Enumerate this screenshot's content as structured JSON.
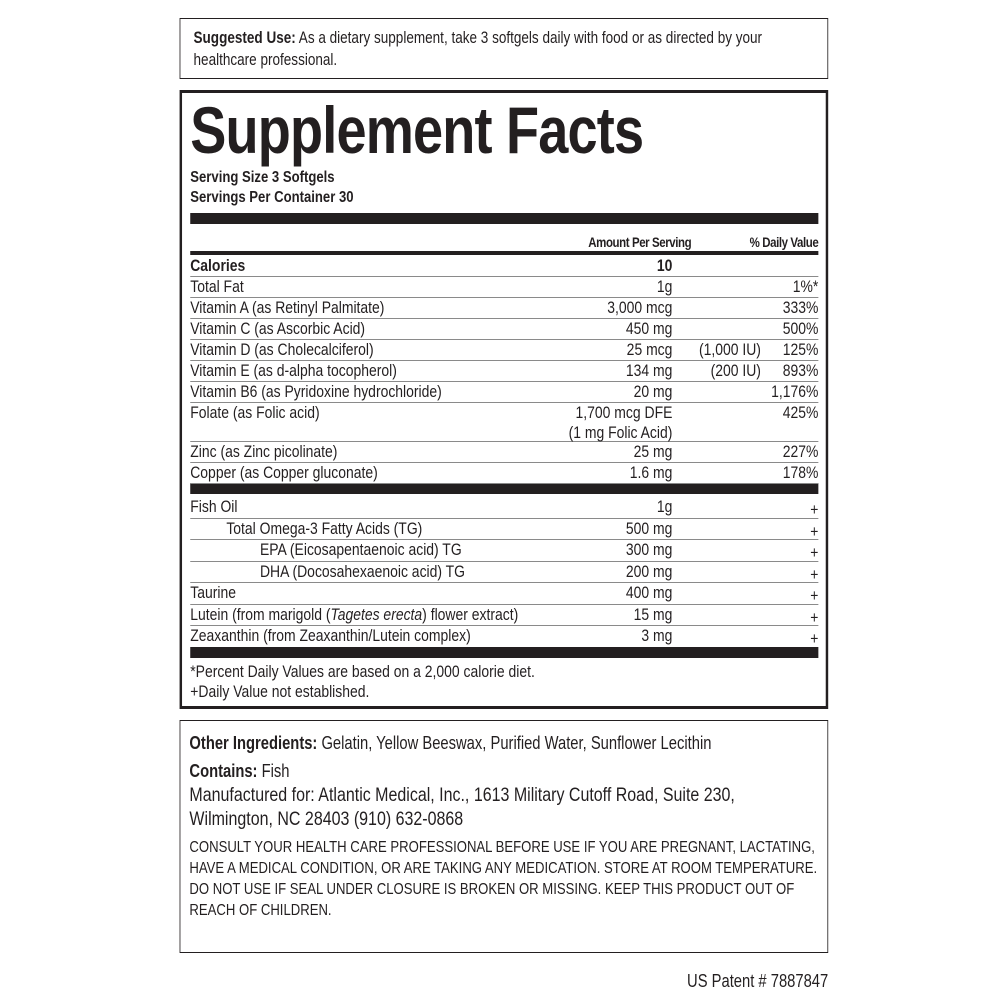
{
  "suggested_use": {
    "label": "Suggested Use:",
    "text": " As a dietary supplement, take 3 softgels daily with food or as directed by your healthcare professional."
  },
  "facts": {
    "title": "Supplement Facts",
    "serving_size": "Serving Size 3 Softgels",
    "servings_per_container": "Servings Per Container 30",
    "col_amount": "Amount Per Serving",
    "col_dv": "% Daily Value",
    "calories": {
      "name": "Calories",
      "amount": "10"
    },
    "rows": [
      {
        "name": "Total Fat",
        "amount": "1g",
        "iu": "",
        "dv": "1%*"
      },
      {
        "name": "Vitamin A (as Retinyl Palmitate)",
        "amount": "3,000 mcg",
        "iu": "",
        "dv": "333%"
      },
      {
        "name": "Vitamin C (as Ascorbic Acid)",
        "amount": "450 mg",
        "iu": "",
        "dv": "500%"
      },
      {
        "name": "Vitamin D (as Cholecalciferol)",
        "amount": "25 mcg",
        "iu": "(1,000 IU)",
        "dv": "125%"
      },
      {
        "name": "Vitamin E (as d-alpha tocopherol)",
        "amount": "134 mg",
        "iu": "(200 IU)",
        "dv": "893%"
      },
      {
        "name": "Vitamin B6 (as Pyridoxine hydrochloride)",
        "amount": "20 mg",
        "iu": "",
        "dv": "1,176%"
      },
      {
        "name": "Folate (as Folic acid)",
        "amount": "1,700 mcg DFE",
        "amount2": "(1 mg Folic Acid)",
        "iu": "",
        "dv": "425%"
      },
      {
        "name": "Zinc (as Zinc picolinate)",
        "amount": "25 mg",
        "iu": "",
        "dv": "227%"
      },
      {
        "name": "Copper (as Copper gluconate)",
        "amount": "1.6 mg",
        "iu": "",
        "dv": "178%"
      }
    ],
    "rows2": [
      {
        "name": "Fish Oil",
        "amount": "1g",
        "dv": "+"
      },
      {
        "name": "Total Omega-3 Fatty Acids (TG)",
        "amount": "500 mg",
        "dv": "+"
      },
      {
        "name": "EPA (Eicosapentaenoic acid) TG",
        "amount": "300 mg",
        "dv": "+"
      },
      {
        "name": "DHA (Docosahexaenoic acid) TG",
        "amount": "200 mg",
        "dv": "+"
      },
      {
        "name": "Taurine",
        "amount": "400 mg",
        "dv": "+"
      },
      {
        "name_pre": "Lutein (from marigold (",
        "name_it": "Tagetes erecta",
        "name_post": ") flower extract)",
        "amount": "15 mg",
        "dv": "+"
      },
      {
        "name": "Zeaxanthin (from Zeaxanthin/Lutein complex)",
        "amount": "3 mg",
        "dv": "+"
      }
    ],
    "footnote1": "*Percent Daily Values are based on a 2,000 calorie diet.",
    "footnote2": "+Daily Value not established."
  },
  "other": {
    "ingredients_label": "Other Ingredients:",
    "ingredients": " Gelatin, Yellow Beeswax, Purified Water, Sunflower Lecithin",
    "contains_label": "Contains:",
    "contains": " Fish",
    "manufacturer": "Manufactured for: Atlantic Medical, Inc., 1613 Military Cutoff Road, Suite 230, Wilmington, NC 28403  (910) 632-0868",
    "warning": "CONSULT YOUR HEALTH CARE PROFESSIONAL BEFORE USE IF YOU ARE PREGNANT, LACTATING, HAVE A MEDICAL CONDITION, OR ARE TAKING ANY MEDICATION. STORE AT ROOM TEMPERATURE. DO NOT USE IF SEAL UNDER CLOSURE IS BROKEN OR MISSING. KEEP THIS PRODUCT OUT OF REACH OF CHILDREN."
  },
  "patent": "US Patent # 7887847"
}
